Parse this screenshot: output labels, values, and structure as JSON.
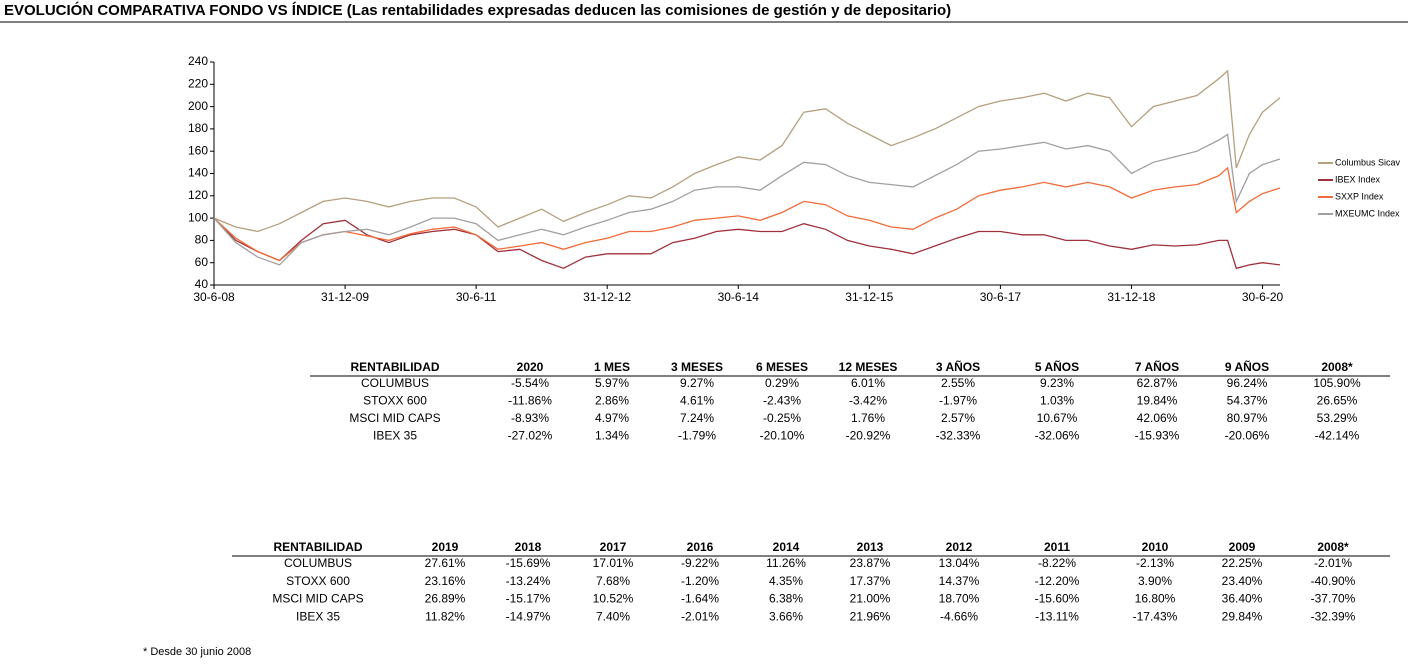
{
  "title": "EVOLUCIÓN COMPARATIVA FONDO VS ÍNDICE (Las rentabilidades expresadas deducen las comisiones de gestión y de depositario)",
  "chart_data": {
    "type": "line",
    "x": [
      2008.5,
      2008.75,
      2009,
      2009.25,
      2009.5,
      2009.75,
      2010,
      2010.25,
      2010.5,
      2010.75,
      2011,
      2011.25,
      2011.5,
      2011.75,
      2012,
      2012.25,
      2012.5,
      2012.75,
      2013,
      2013.25,
      2013.5,
      2013.75,
      2014,
      2014.25,
      2014.5,
      2014.75,
      2015,
      2015.25,
      2015.5,
      2015.75,
      2016,
      2016.25,
      2016.5,
      2016.75,
      2017,
      2017.25,
      2017.5,
      2017.75,
      2018,
      2018.25,
      2018.5,
      2018.75,
      2019,
      2019.25,
      2019.5,
      2019.75,
      2020,
      2020.1,
      2020.2,
      2020.35,
      2020.5,
      2020.7
    ],
    "series": [
      {
        "name": "Columbus Sicav",
        "color": "#b5a07e",
        "values": [
          100,
          92,
          88,
          95,
          105,
          115,
          118,
          115,
          110,
          115,
          118,
          118,
          110,
          92,
          100,
          108,
          97,
          105,
          112,
          120,
          118,
          128,
          140,
          148,
          155,
          152,
          165,
          195,
          198,
          185,
          175,
          165,
          172,
          180,
          190,
          200,
          205,
          208,
          212,
          205,
          212,
          208,
          182,
          200,
          205,
          210,
          225,
          232,
          145,
          175,
          195,
          208
        ]
      },
      {
        "name": "IBEX Index",
        "color": "#a0303a",
        "values": [
          100,
          80,
          70,
          62,
          80,
          95,
          98,
          85,
          78,
          85,
          88,
          90,
          85,
          70,
          72,
          62,
          55,
          65,
          68,
          68,
          68,
          78,
          82,
          88,
          90,
          88,
          88,
          95,
          90,
          80,
          75,
          72,
          68,
          75,
          82,
          88,
          88,
          85,
          85,
          80,
          80,
          75,
          72,
          76,
          75,
          76,
          80,
          80,
          55,
          58,
          60,
          58
        ]
      },
      {
        "name": "SXXP Index",
        "color": "#f26b3a",
        "values": [
          100,
          82,
          70,
          62,
          78,
          85,
          88,
          84,
          80,
          86,
          90,
          92,
          85,
          72,
          75,
          78,
          72,
          78,
          82,
          88,
          88,
          92,
          98,
          100,
          102,
          98,
          105,
          115,
          112,
          102,
          98,
          92,
          90,
          100,
          108,
          120,
          125,
          128,
          132,
          128,
          132,
          128,
          118,
          125,
          128,
          130,
          138,
          145,
          105,
          115,
          122,
          127
        ]
      },
      {
        "name": "MXEUMC Index",
        "color": "#a0a0a0",
        "values": [
          100,
          78,
          65,
          58,
          78,
          85,
          88,
          90,
          85,
          92,
          100,
          100,
          95,
          80,
          85,
          90,
          85,
          92,
          98,
          105,
          108,
          115,
          125,
          128,
          128,
          125,
          138,
          150,
          148,
          138,
          132,
          130,
          128,
          138,
          148,
          160,
          162,
          165,
          168,
          162,
          165,
          160,
          140,
          150,
          155,
          160,
          170,
          175,
          115,
          140,
          148,
          153
        ]
      }
    ],
    "xlim": [
      2008.5,
      2020.7
    ],
    "xticks": [
      {
        "value": 2008.5,
        "label": "30-6-08"
      },
      {
        "value": 2010,
        "label": "31-12-09"
      },
      {
        "value": 2011.5,
        "label": "30-6-11"
      },
      {
        "value": 2013,
        "label": "31-12-12"
      },
      {
        "value": 2014.5,
        "label": "30-6-14"
      },
      {
        "value": 2016,
        "label": "31-12-15"
      },
      {
        "value": 2017.5,
        "label": "30-6-17"
      },
      {
        "value": 2019,
        "label": "31-12-18"
      },
      {
        "value": 2020.5,
        "label": "30-6-20"
      }
    ],
    "ylim": [
      40,
      240
    ],
    "yticks": [
      40,
      60,
      80,
      100,
      120,
      140,
      160,
      180,
      200,
      220,
      240
    ],
    "legend": "right"
  },
  "tables": [
    {
      "columns": [
        "RENTABILIDAD",
        "2020",
        "1 MES",
        "3 MESES",
        "6 MESES",
        "12 MESES",
        "3 AÑOS",
        "5 AÑOS",
        "7 AÑOS",
        "9 AÑOS",
        "2008*"
      ],
      "rows": [
        [
          "COLUMBUS",
          "-5.54%",
          "5.97%",
          "9.27%",
          "0.29%",
          "6.01%",
          "2.55%",
          "9.23%",
          "62.87%",
          "96.24%",
          "105.90%"
        ],
        [
          "STOXX 600",
          "-11.86%",
          "2.86%",
          "4.61%",
          "-2.43%",
          "-3.42%",
          "-1.97%",
          "1.03%",
          "19.84%",
          "54.37%",
          "26.65%"
        ],
        [
          "MSCI MID CAPS",
          "-8.93%",
          "4.97%",
          "7.24%",
          "-0.25%",
          "1.76%",
          "2.57%",
          "10.67%",
          "42.06%",
          "80.97%",
          "53.29%"
        ],
        [
          "IBEX 35",
          "-27.02%",
          "1.34%",
          "-1.79%",
          "-20.10%",
          "-20.92%",
          "-32.33%",
          "-32.06%",
          "-15.93%",
          "-20.06%",
          "-42.14%"
        ]
      ]
    },
    {
      "columns": [
        "RENTABILIDAD",
        "2019",
        "2018",
        "2017",
        "2016",
        "2014",
        "2013",
        "2012",
        "2011",
        "2010",
        "2009",
        "2008*"
      ],
      "rows": [
        [
          "COLUMBUS",
          "27.61%",
          "-15.69%",
          "17.01%",
          "-9.22%",
          "11.26%",
          "23.87%",
          "13.04%",
          "-8.22%",
          "-2.13%",
          "22.25%",
          "-2.01%"
        ],
        [
          "STOXX 600",
          "23.16%",
          "-13.24%",
          "7.68%",
          "-1.20%",
          "4.35%",
          "17.37%",
          "14.37%",
          "-12.20%",
          "3.90%",
          "23.40%",
          "-40.90%"
        ],
        [
          "MSCI MID CAPS",
          "26.89%",
          "-15.17%",
          "10.52%",
          "-1.64%",
          "6.38%",
          "21.00%",
          "18.70%",
          "-15.60%",
          "16.80%",
          "36.40%",
          "-37.70%"
        ],
        [
          "IBEX 35",
          "11.82%",
          "-14.97%",
          "7.40%",
          "-2.01%",
          "3.66%",
          "21.96%",
          "-4.66%",
          "-13.11%",
          "-17.43%",
          "29.84%",
          "-32.39%"
        ]
      ]
    }
  ],
  "footnote": "* Desde 30 junio 2008"
}
